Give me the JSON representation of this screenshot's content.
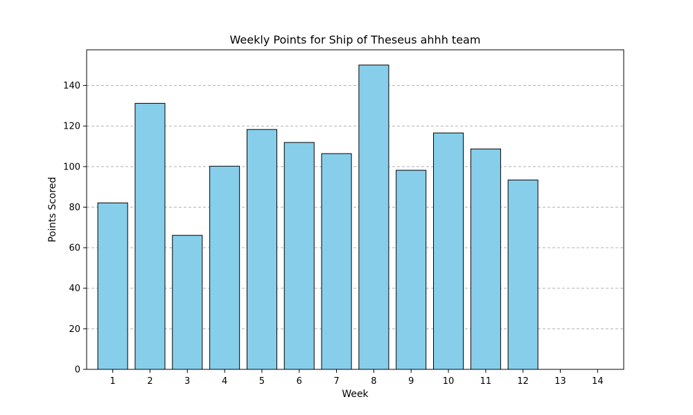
{
  "chart_data": {
    "type": "bar",
    "title": "Weekly Points for Ship of Theseus ahhh team",
    "xlabel": "Week",
    "ylabel": "Points Scored",
    "categories": [
      "1",
      "2",
      "3",
      "4",
      "5",
      "6",
      "7",
      "8",
      "9",
      "10",
      "11",
      "12",
      "13",
      "14"
    ],
    "values": [
      82.1,
      131.2,
      66.1,
      100.2,
      118.3,
      111.9,
      106.4,
      150.1,
      98.2,
      116.6,
      108.7,
      93.4,
      0,
      0
    ],
    "ylim": [
      0,
      157.6
    ],
    "yticks": [
      0,
      20,
      40,
      60,
      80,
      100,
      120,
      140
    ],
    "grid": "y-dashed",
    "colors": {
      "bar_fill": "#87ceeb",
      "bar_edge": "#000000",
      "grid": "#b0b0b0",
      "axis": "#000000"
    }
  }
}
